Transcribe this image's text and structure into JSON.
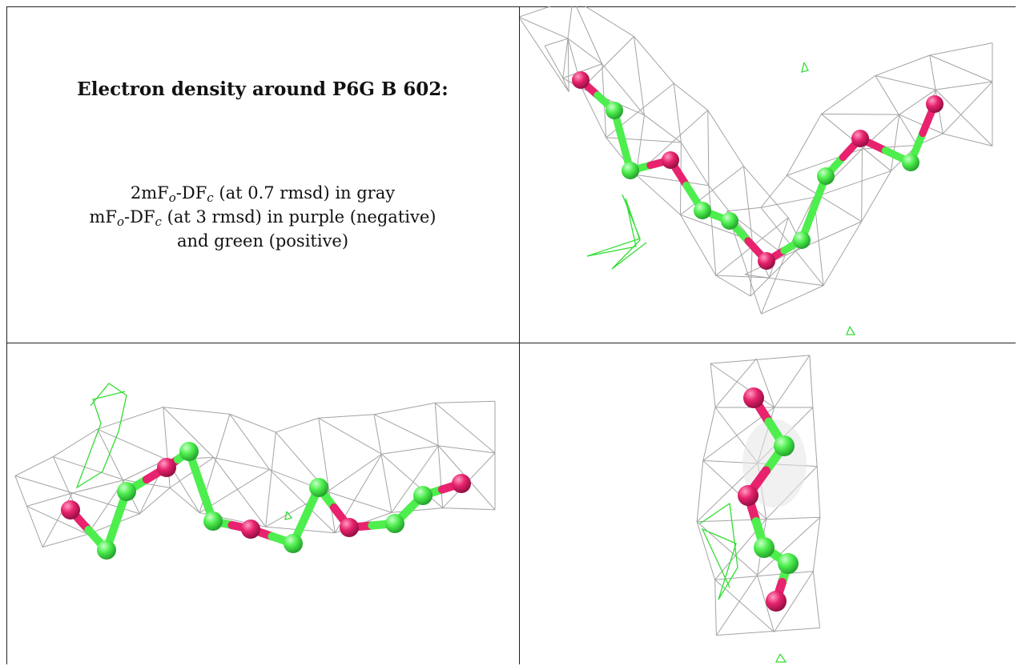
{
  "panel_text": {
    "title": "Electron density around P6G B 602:",
    "line1_pre": "2mF",
    "line1_sub1": "o",
    "line1_mid": "-DF",
    "line1_sub2": "c",
    "line1_post": " (at 0.7 rmsd) in gray",
    "line2_pre": "mF",
    "line2_sub1": "o",
    "line2_mid": "-DF",
    "line2_sub2": "c",
    "line2_post": " (at 3 rmsd) in purple (negative)",
    "line3": "and green (positive)"
  },
  "colors": {
    "mesh_gray": "#9a9a9a",
    "difference_positive": "#33dd33",
    "carbon_atom": "#4dee4d",
    "oxygen_atom": "#e8226e",
    "border": "#222222"
  },
  "views": [
    {
      "name": "view-top-right",
      "atoms": [
        "O",
        "C",
        "C",
        "O",
        "C",
        "C",
        "O",
        "C",
        "C",
        "O",
        "C",
        "O"
      ]
    },
    {
      "name": "view-bottom-left",
      "atoms": [
        "O",
        "C",
        "C",
        "O",
        "C",
        "C",
        "O",
        "C",
        "C",
        "O",
        "C",
        "C",
        "O"
      ]
    },
    {
      "name": "view-bottom-right",
      "atoms": [
        "O",
        "C",
        "O",
        "C",
        "C",
        "O"
      ]
    }
  ]
}
